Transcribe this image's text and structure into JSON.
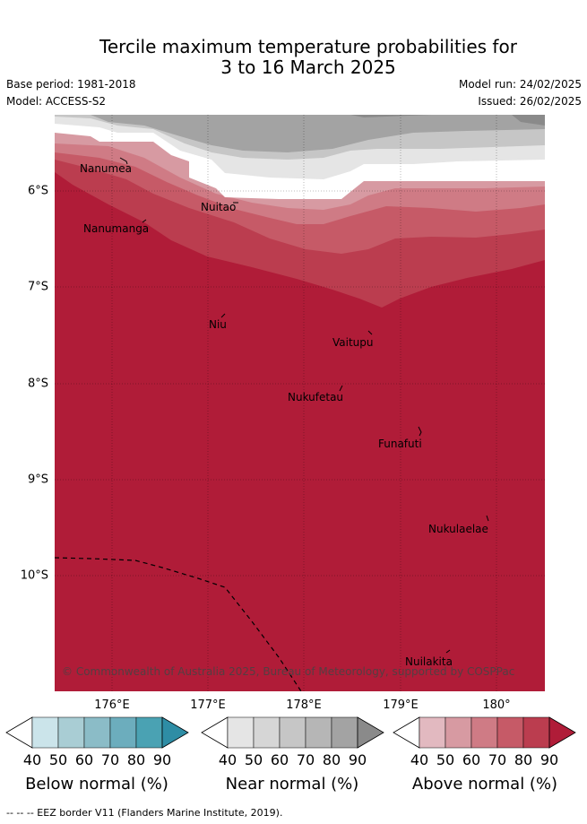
{
  "title_line1": "Tercile maximum temperature probabilities for",
  "title_line2": "3 to 16 March 2025",
  "base_period": "Base period: 1981-2018",
  "model": "Model: ACCESS-S2",
  "model_run": "Model run: 24/02/2025",
  "issued": "Issued: 26/02/2025",
  "x_ticks": [
    "176°E",
    "177°E",
    "178°E",
    "179°E",
    "180°"
  ],
  "y_ticks": [
    "6°S",
    "7°S",
    "8°S",
    "9°S",
    "10°S"
  ],
  "places": [
    {
      "name": "Nanumea"
    },
    {
      "name": "Nuitao"
    },
    {
      "name": "Nanumanga"
    },
    {
      "name": "Niu"
    },
    {
      "name": "Vaitupu"
    },
    {
      "name": "Nukufetau"
    },
    {
      "name": "Funafuti"
    },
    {
      "name": "Nukulaelae"
    },
    {
      "name": "Nuilakita"
    }
  ],
  "credit": "© Commonwealth of Australia 2025, Bureau of Meteorology, supported by COSPPac",
  "colorbars": [
    {
      "label": "Below normal (%)",
      "ticks": [
        "40",
        "50",
        "60",
        "70",
        "80",
        "90"
      ],
      "colors": [
        "#cbe4ea",
        "#a9cdd4",
        "#8bbcc7",
        "#6cadbd",
        "#4aa2b3",
        "#2e8da5"
      ]
    },
    {
      "label": "Near normal (%)",
      "ticks": [
        "40",
        "50",
        "60",
        "70",
        "80",
        "90"
      ],
      "colors": [
        "#e5e5e5",
        "#d6d6d6",
        "#c6c6c6",
        "#b6b6b6",
        "#a3a3a3",
        "#8a8a8a"
      ]
    },
    {
      "label": "Above normal (%)",
      "ticks": [
        "40",
        "50",
        "60",
        "70",
        "80",
        "90"
      ],
      "colors": [
        "#e2b9c0",
        "#d79aa2",
        "#cf7b85",
        "#c65a67",
        "#bb3d4f",
        "#b01c38"
      ]
    }
  ],
  "footer": "--  --  -- EEZ border V11 (Flanders Marine Institute, 2019)."
}
